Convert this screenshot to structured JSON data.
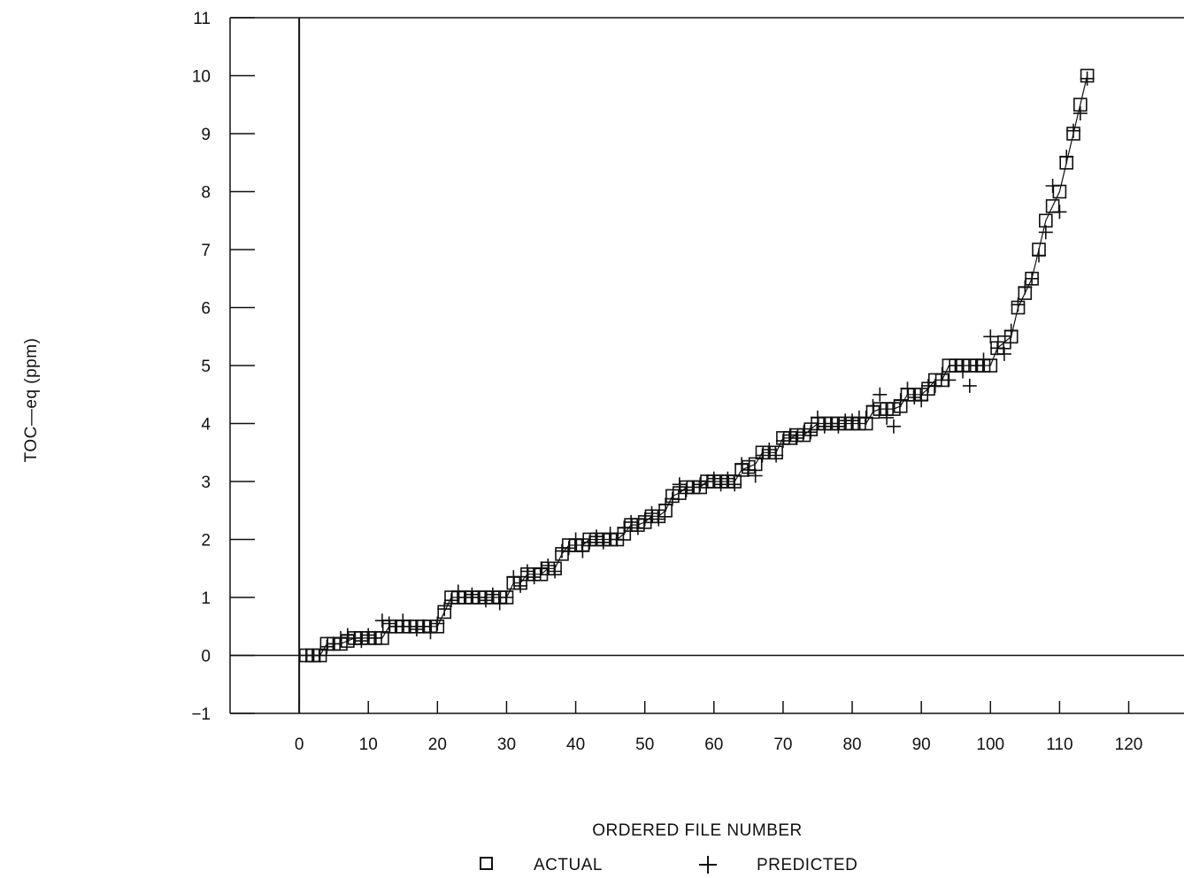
{
  "chart_data": {
    "type": "scatter",
    "title": "",
    "xlabel": "ORDERED FILE NUMBER",
    "ylabel": "TOC—eq (ppm)",
    "xlim": [
      -10,
      128
    ],
    "ylim": [
      -1,
      11
    ],
    "xticks": [
      0,
      10,
      20,
      30,
      40,
      50,
      60,
      70,
      80,
      90,
      100,
      110,
      120
    ],
    "yticks": [
      -1,
      0,
      1,
      2,
      3,
      4,
      5,
      6,
      7,
      8,
      9,
      10,
      11
    ],
    "grid": false,
    "legend": "bottom-center",
    "colors": {
      "ink": "#111111",
      "background": "#ffffff"
    },
    "series": [
      {
        "name": "ACTUAL",
        "marker": "square",
        "x": [
          1,
          2,
          3,
          4,
          5,
          6,
          7,
          8,
          9,
          10,
          11,
          12,
          13,
          14,
          15,
          16,
          17,
          18,
          19,
          20,
          21,
          22,
          23,
          24,
          25,
          26,
          27,
          28,
          29,
          30,
          31,
          32,
          33,
          34,
          35,
          36,
          37,
          38,
          39,
          40,
          41,
          42,
          43,
          44,
          45,
          46,
          47,
          48,
          49,
          50,
          51,
          52,
          53,
          54,
          55,
          56,
          57,
          58,
          59,
          60,
          61,
          62,
          63,
          64,
          65,
          66,
          67,
          68,
          69,
          70,
          71,
          72,
          73,
          74,
          75,
          76,
          77,
          78,
          79,
          80,
          81,
          82,
          83,
          84,
          85,
          86,
          87,
          88,
          89,
          90,
          91,
          92,
          93,
          94,
          95,
          96,
          97,
          98,
          99,
          100,
          101,
          102,
          103,
          104,
          105,
          106,
          107,
          108,
          109,
          110,
          111,
          112,
          113,
          114
        ],
        "y": [
          0,
          0,
          0,
          0.2,
          0.2,
          0.2,
          0.25,
          0.3,
          0.3,
          0.3,
          0.3,
          0.3,
          0.5,
          0.5,
          0.5,
          0.5,
          0.5,
          0.5,
          0.5,
          0.5,
          0.75,
          1,
          1,
          1,
          1,
          1,
          1,
          1,
          1,
          1,
          1.25,
          1.25,
          1.4,
          1.4,
          1.4,
          1.5,
          1.5,
          1.75,
          1.9,
          1.9,
          1.9,
          2,
          2,
          2,
          2,
          2,
          2.1,
          2.25,
          2.25,
          2.3,
          2.4,
          2.4,
          2.5,
          2.75,
          2.8,
          2.9,
          2.9,
          2.9,
          3,
          3,
          3,
          3,
          3,
          3.2,
          3.25,
          3.3,
          3.5,
          3.5,
          3.5,
          3.75,
          3.75,
          3.8,
          3.8,
          3.9,
          4,
          4,
          4,
          4,
          4,
          4,
          4,
          4,
          4.2,
          4.25,
          4.25,
          4.25,
          4.3,
          4.5,
          4.5,
          4.5,
          4.6,
          4.75,
          4.75,
          5,
          5,
          5,
          5,
          5,
          5,
          5,
          5.3,
          5.4,
          5.5,
          6,
          6.25,
          6.5,
          7,
          7.5,
          7.75,
          8,
          8.5,
          9,
          9.5,
          10
        ]
      },
      {
        "name": "PREDICTED",
        "marker": "plus",
        "x": [
          1,
          2,
          3,
          4,
          5,
          6,
          7,
          8,
          9,
          10,
          11,
          12,
          13,
          14,
          15,
          16,
          17,
          18,
          19,
          20,
          21,
          22,
          23,
          24,
          25,
          26,
          27,
          28,
          29,
          30,
          31,
          32,
          33,
          34,
          35,
          36,
          37,
          38,
          39,
          40,
          41,
          42,
          43,
          44,
          45,
          46,
          47,
          48,
          49,
          50,
          51,
          52,
          53,
          54,
          55,
          56,
          57,
          58,
          59,
          60,
          61,
          62,
          63,
          64,
          65,
          66,
          67,
          68,
          69,
          70,
          71,
          72,
          73,
          74,
          75,
          76,
          77,
          78,
          79,
          80,
          81,
          82,
          83,
          84,
          85,
          86,
          87,
          88,
          89,
          90,
          91,
          92,
          93,
          94,
          95,
          96,
          97,
          98,
          99,
          100,
          101,
          102,
          103,
          104,
          105,
          106,
          107,
          108,
          109,
          110,
          111,
          112,
          113,
          114
        ],
        "y": [
          0,
          0,
          0,
          0.15,
          0.2,
          0.3,
          0.35,
          0.3,
          0.25,
          0.35,
          0.3,
          0.6,
          0.55,
          0.5,
          0.6,
          0.5,
          0.45,
          0.5,
          0.4,
          0.55,
          0.8,
          0.95,
          1.1,
          1,
          1.05,
          1,
          0.95,
          1.05,
          0.9,
          1,
          1.35,
          1.2,
          1.45,
          1.35,
          1.5,
          1.55,
          1.45,
          1.8,
          1.85,
          2,
          1.8,
          1.95,
          2.05,
          1.95,
          2.1,
          2,
          2.2,
          2.3,
          2.2,
          2.35,
          2.45,
          2.35,
          2.6,
          2.7,
          2.95,
          2.85,
          2.9,
          2.95,
          3,
          3.05,
          2.95,
          3.05,
          2.95,
          3.3,
          3.2,
          3.1,
          3.45,
          3.55,
          3.45,
          3.7,
          3.8,
          3.75,
          3.85,
          3.85,
          4.1,
          3.95,
          4,
          3.95,
          4.05,
          4.05,
          4.1,
          4.1,
          4.3,
          4.5,
          4.1,
          3.95,
          4.4,
          4.6,
          4.45,
          4.4,
          4.65,
          4.65,
          4.85,
          4.75,
          5,
          4.9,
          4.65,
          5,
          5.1,
          5.5,
          5.3,
          5.2,
          5.6,
          6.05,
          6.35,
          6.5,
          6.9,
          7.3,
          8.1,
          7.65,
          8.6,
          9.05,
          9.35,
          9.95
        ]
      }
    ]
  }
}
